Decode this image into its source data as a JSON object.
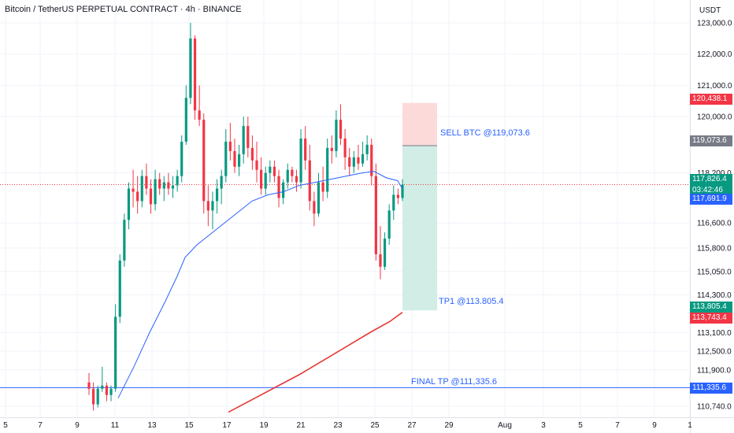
{
  "header": {
    "title": "Bitcoin / TetherUS PERPETUAL CONTRACT · 4h · BINANCE",
    "currency": "USDT"
  },
  "axis": {
    "price_ticks": [
      "123,000.0",
      "122,000.0",
      "121,000.0",
      "120,000.0",
      "118,200.0",
      "116,600.0",
      "115,800.0",
      "115,050.0",
      "114,300.0",
      "113,100.0",
      "112,500.0",
      "111,900.0",
      "110,740.0"
    ],
    "price_tick_values": [
      123000,
      122000,
      121000,
      120000,
      118200,
      116600,
      115800,
      115050,
      114300,
      113100,
      112500,
      111900,
      110740
    ],
    "date_ticks": [
      "5",
      "7",
      "9",
      "11",
      "13",
      "15",
      "17",
      "19",
      "21",
      "23",
      "25",
      "27",
      "29",
      "Aug",
      "3",
      "5",
      "7",
      "9",
      "1"
    ]
  },
  "badges": [
    {
      "id": "stop",
      "label": "120,438.1",
      "value": 120438.1,
      "color": "#f23645"
    },
    {
      "id": "sell",
      "label": "119,073.6",
      "value": 119073.6,
      "color": "#787b86"
    },
    {
      "id": "last",
      "label": "117,826.4",
      "sub": "03:42:46",
      "value": 117826.4,
      "color": "#089981"
    },
    {
      "id": "ma50",
      "label": "117,691.9",
      "value": 117691.9,
      "color": "#2962ff"
    },
    {
      "id": "tp1",
      "label": "113,805.4",
      "value": 113805.4,
      "color": "#089981"
    },
    {
      "id": "ma200",
      "label": "113,743.4",
      "value": 113743.4,
      "color": "#f23645"
    },
    {
      "id": "final",
      "label": "111,335.6",
      "value": 111335.6,
      "color": "#2962ff"
    }
  ],
  "annotations": {
    "sell": "SELL BTC @119,073.6",
    "tp1": "TP1 @113.805.4",
    "final": "FINAL TP @111,335.6"
  },
  "colors": {
    "up": "#089981",
    "down": "#f23645",
    "ma_fast": "#2962ff",
    "ma_slow": "#e53935",
    "profit_zone": "#d1ede6",
    "loss_zone": "#fcdada",
    "grid": "#f0f3fa"
  },
  "chart_data": {
    "type": "candlestick",
    "timeframe": "4h",
    "y_range": [
      110400,
      123300
    ],
    "position": {
      "entry": 119073.6,
      "stop": 120438.1,
      "target": 113805.4
    },
    "horizontal_lines": [
      111335.6
    ],
    "current_price": 117826.4,
    "ma_fast_last": 117691.9,
    "ma_slow_last": 113743.4
  }
}
